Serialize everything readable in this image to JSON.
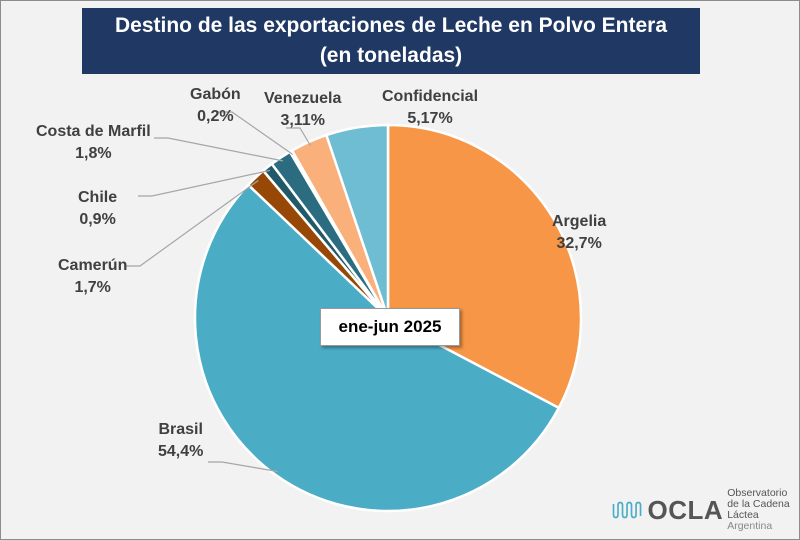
{
  "chart_data": {
    "type": "pie",
    "title": [
      "Destino de las exportaciones de Leche en Polvo Entera",
      "(en toneladas)"
    ],
    "annotation": "ene-jun 2025",
    "start_angle": "top, clockwise",
    "slices": [
      {
        "label": "Argelia",
        "value": 32.7,
        "display": "32,7%",
        "color": "#f79646"
      },
      {
        "label": "Brasil",
        "value": 54.4,
        "display": "54,4%",
        "color": "#4bacc6"
      },
      {
        "label": "Camerún",
        "value": 1.7,
        "display": "1,7%",
        "color": "#974806"
      },
      {
        "label": "Chile",
        "value": 0.9,
        "display": "0,9%",
        "color": "#215968"
      },
      {
        "label": "Costa de Marfil",
        "value": 1.8,
        "display": "1,8%",
        "color": "#2b6c80"
      },
      {
        "label": "Gabón",
        "value": 0.2,
        "display": "0,2%",
        "color": "#c0504d"
      },
      {
        "label": "Venezuela",
        "value": 3.11,
        "display": "3,11%",
        "color": "#fab07a"
      },
      {
        "label": "Confidencial",
        "value": 5.17,
        "display": "5,17%",
        "color": "#6fbdd3"
      }
    ]
  },
  "logo": {
    "name": "OCLA",
    "line1": "Observatorio",
    "line2": "de la Cadena Láctea",
    "line3": "Argentina",
    "color": "#4bacc6"
  }
}
